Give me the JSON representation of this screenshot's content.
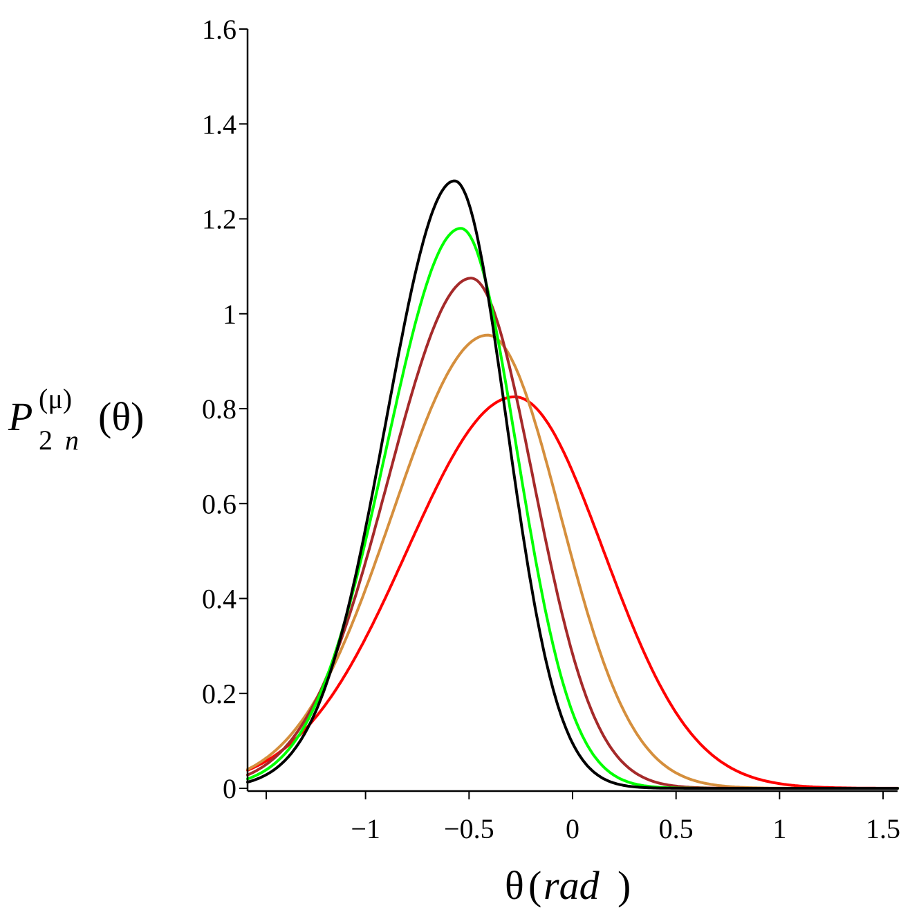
{
  "chart_data": {
    "type": "line",
    "title": "",
    "xlabel": {
      "symbol": "θ",
      "open": "(",
      "unit": "rad",
      "close": ")"
    },
    "ylabel": {
      "letter": "P",
      "superscript": "(μ)",
      "subscript_number": "2",
      "subscript_var": "n",
      "argument": "(θ)"
    },
    "xlim": [
      -1.57,
      1.57
    ],
    "ylim": [
      0,
      1.6
    ],
    "x_ticks": [
      -1,
      -0.5,
      0,
      0.5,
      1,
      1.5
    ],
    "x_tick_labels": [
      "−1",
      "−0.5",
      "0",
      "0.5",
      "1",
      "1.5"
    ],
    "y_ticks": [
      0,
      0.2,
      0.4,
      0.6,
      0.8,
      1,
      1.2,
      1.4,
      1.6
    ],
    "y_tick_labels": [
      "0",
      "0.2",
      "0.4",
      "0.6",
      "0.8",
      "1",
      "1.2",
      "1.4",
      "1.6"
    ],
    "grid": false,
    "series": [
      {
        "name": "red",
        "color": "#ff0000",
        "peak_x": -0.28,
        "peak_y": 0.825,
        "sigma_left": 0.52,
        "sigma_right": 0.43
      },
      {
        "name": "orange",
        "color": "#d58f3d",
        "peak_x": -0.41,
        "peak_y": 0.955,
        "sigma_left": 0.46,
        "sigma_right": 0.35
      },
      {
        "name": "brown",
        "color": "#a52a2a",
        "peak_x": -0.49,
        "peak_y": 1.075,
        "sigma_left": 0.4,
        "sigma_right": 0.3
      },
      {
        "name": "green",
        "color": "#00ff00",
        "peak_x": -0.54,
        "peak_y": 1.18,
        "sigma_left": 0.36,
        "sigma_right": 0.27
      },
      {
        "name": "black",
        "color": "#000000",
        "peak_x": -0.57,
        "peak_y": 1.28,
        "sigma_left": 0.33,
        "sigma_right": 0.25
      }
    ]
  }
}
